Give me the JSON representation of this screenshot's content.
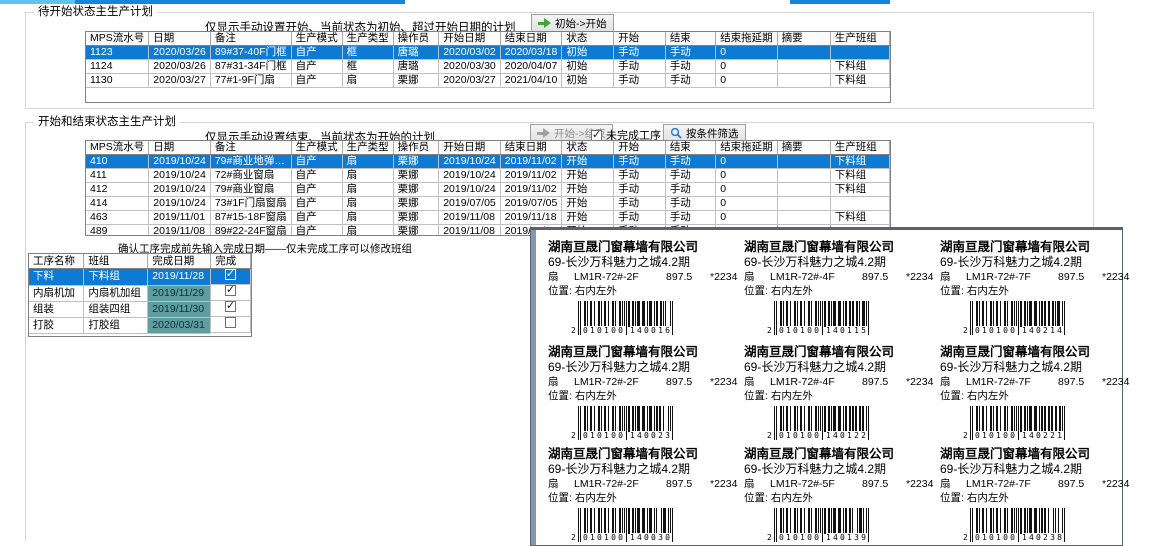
{
  "chrome": {
    "strip_light_color": "#5fc3f0",
    "strip_dark_color": "#1286d9"
  },
  "main_columns": [
    "MPS流水号",
    "日期",
    "备注",
    "生产模式",
    "生产类型",
    "操作员",
    "开始日期",
    "结束日期",
    "状态",
    "开始",
    "结束",
    "结束拖延期",
    "摘要",
    "生产班组"
  ],
  "pending": {
    "title": "待开始状态主生产计划",
    "caption": "仅显示手动设置开始、当前状态为初始、超过开始日期的计划",
    "action_button": "初始->开始",
    "selected_index": 0,
    "rows": [
      {
        "sn": "1123",
        "date": "2020/03/26",
        "note": "89#37-40F门框",
        "mode": "自产",
        "ptype": "框",
        "operator": "唐璐",
        "start_date": "2020/03/02",
        "end_date": "2020/03/18",
        "status": "初始",
        "start": "手动",
        "end": "手动",
        "delay": "0",
        "summary": "",
        "team": ""
      },
      {
        "sn": "1124",
        "date": "2020/03/26",
        "note": "87#31-34F门框",
        "mode": "自产",
        "ptype": "框",
        "operator": "唐璐",
        "start_date": "2020/03/30",
        "end_date": "2020/04/07",
        "status": "初始",
        "start": "手动",
        "end": "手动",
        "delay": "0",
        "summary": "",
        "team": "下料组"
      },
      {
        "sn": "1130",
        "date": "2020/03/27",
        "note": "77#1-9F门扇",
        "mode": "自产",
        "ptype": "扇",
        "operator": "栗娜",
        "start_date": "2020/03/27",
        "end_date": "2021/04/10",
        "status": "初始",
        "start": "手动",
        "end": "手动",
        "delay": "0",
        "summary": "",
        "team": "下料组"
      }
    ]
  },
  "active": {
    "title": "开始和结束状态主生产计划",
    "caption": "仅显示手动设置结束、当前状态为开始的计划",
    "action_button": "开始->结束",
    "filter_button": "按条件筛选",
    "unfinished_checkbox": {
      "label": "未完成工序",
      "checked": true
    },
    "selected_index": 0,
    "rows": [
      {
        "sn": "410",
        "date": "2019/10/24",
        "note": "79#商业地弹…",
        "note_teal": true,
        "mode": "自产",
        "ptype": "扇",
        "operator": "栗娜",
        "start_date": "2019/10/24",
        "end_date": "2019/11/02",
        "status": "开始",
        "start": "手动",
        "end": "手动",
        "delay": "0",
        "summary": "",
        "team": "下料组"
      },
      {
        "sn": "411",
        "date": "2019/10/24",
        "note": "72#商业窗扇",
        "mode": "自产",
        "ptype": "扇",
        "operator": "栗娜",
        "start_date": "2019/10/24",
        "end_date": "2019/11/02",
        "status": "开始",
        "start": "手动",
        "end": "手动",
        "delay": "0",
        "summary": "",
        "team": "下料组"
      },
      {
        "sn": "412",
        "date": "2019/10/24",
        "note": "79#商业窗扇",
        "mode": "自产",
        "ptype": "扇",
        "operator": "栗娜",
        "start_date": "2019/10/24",
        "end_date": "2019/11/02",
        "status": "开始",
        "start": "手动",
        "end": "手动",
        "delay": "0",
        "summary": "",
        "team": "下料组"
      },
      {
        "sn": "414",
        "date": "2019/10/24",
        "note": "73#1F门扇窗扇",
        "mode": "自产",
        "ptype": "扇",
        "operator": "栗娜",
        "start_date": "2019/07/05",
        "end_date": "2019/07/05",
        "status": "开始",
        "start": "手动",
        "end": "手动",
        "delay": "0",
        "summary": "",
        "team": ""
      },
      {
        "sn": "463",
        "date": "2019/11/01",
        "note": "87#15-18F窗扇",
        "mode": "自产",
        "ptype": "扇",
        "operator": "栗娜",
        "start_date": "2019/11/08",
        "end_date": "2019/11/18",
        "status": "开始",
        "start": "手动",
        "end": "手动",
        "delay": "0",
        "summary": "",
        "team": "下料组"
      },
      {
        "sn": "489",
        "date": "2019/11/08",
        "note": "89#22-24F窗扇",
        "mode": "自产",
        "ptype": "扇",
        "operator": "栗娜",
        "start_date": "2019/11/08",
        "end_date": "2019/11/18",
        "status": "开始",
        "start": "手动",
        "end": "手动",
        "delay": "0",
        "summary": "",
        "team": ""
      }
    ]
  },
  "process": {
    "caption": "确认工序完成前先输入完成日期——仅未完成工序可以修改班组",
    "columns": [
      "工序名称",
      "班组",
      "完成日期",
      "完成"
    ],
    "selected_index": 0,
    "rows": [
      {
        "name": "下料",
        "team": "下料组",
        "date": "2019/11/28",
        "done": true
      },
      {
        "name": "内扇机加",
        "team": "内扇机加组",
        "date": "2019/11/29",
        "done": true
      },
      {
        "name": "组装",
        "team": "组装四组",
        "date": "2019/11/30",
        "done": true
      },
      {
        "name": "打胶",
        "team": "打胶组",
        "date": "2020/03/31",
        "done": false
      }
    ]
  },
  "labels_panel": {
    "company": "湖南亘晟门窗幕墙有限公司",
    "project": "69-长沙万科魅力之城4.2期",
    "item_type": "扇",
    "dim_width": "897.5",
    "dim_height": "*2234",
    "position_label": "位置:",
    "position_value": "右内左外",
    "items": [
      {
        "model": "LM1R-72#-2F",
        "barcode": "2010100140016"
      },
      {
        "model": "LM1R-72#-4F",
        "barcode": "2010100140115"
      },
      {
        "model": "LM1R-72#-7F",
        "barcode": "2010100140214"
      },
      {
        "model": "LM1R-72#-2F",
        "barcode": "2010100140023"
      },
      {
        "model": "LM1R-72#-4F",
        "barcode": "2010100140122"
      },
      {
        "model": "LM1R-72#-7F",
        "barcode": "2010100140221"
      },
      {
        "model": "LM1R-72#-2F",
        "barcode": "2010100140030"
      },
      {
        "model": "LM1R-72#-5F",
        "barcode": "2010100140139"
      },
      {
        "model": "LM1R-72#-7F",
        "barcode": "2010100140238"
      }
    ]
  }
}
